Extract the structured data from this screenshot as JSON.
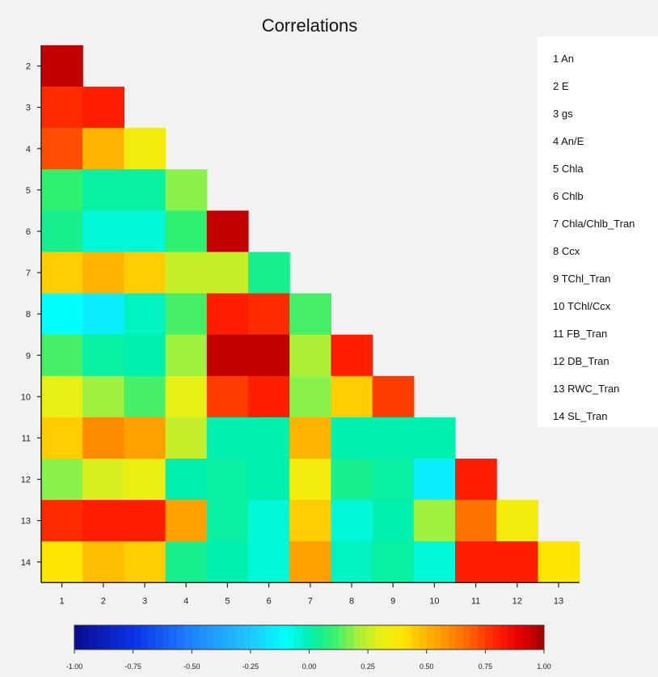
{
  "chart_data": {
    "type": "heatmap",
    "title": "Correlations",
    "x_tick_labels": [
      "1",
      "2",
      "3",
      "4",
      "5",
      "6",
      "7",
      "8",
      "9",
      "10",
      "11",
      "12",
      "13"
    ],
    "y_tick_labels": [
      "2",
      "3",
      "4",
      "5",
      "6",
      "7",
      "8",
      "9",
      "10",
      "11",
      "12",
      "13",
      "14"
    ],
    "matrix": [
      [
        0.95
      ],
      [
        0.78,
        0.8
      ],
      [
        0.72,
        0.5,
        0.35
      ],
      [
        0.1,
        0.02,
        0.02,
        0.18
      ],
      [
        0.05,
        -0.05,
        -0.05,
        0.1,
        0.95
      ],
      [
        0.45,
        0.5,
        0.45,
        0.25,
        0.25,
        0.05
      ],
      [
        -0.1,
        -0.15,
        -0.02,
        0.12,
        0.8,
        0.78,
        0.12
      ],
      [
        0.12,
        0.02,
        0.0,
        0.2,
        0.95,
        0.95,
        0.22,
        0.8
      ],
      [
        0.3,
        0.2,
        0.12,
        0.3,
        0.75,
        0.8,
        0.18,
        0.45,
        0.75
      ],
      [
        0.45,
        0.6,
        0.55,
        0.25,
        0.0,
        0.0,
        0.5,
        0.0,
        0.0,
        0.0
      ],
      [
        0.18,
        0.28,
        0.32,
        0.0,
        0.02,
        0.0,
        0.35,
        0.05,
        0.02,
        -0.15,
        0.8
      ],
      [
        0.78,
        0.8,
        0.8,
        0.55,
        0.02,
        -0.05,
        0.45,
        -0.05,
        0.0,
        0.2,
        0.65,
        0.35
      ],
      [
        0.4,
        0.48,
        0.45,
        0.05,
        0.0,
        -0.05,
        0.55,
        -0.02,
        0.02,
        -0.05,
        0.8,
        0.8,
        0.4
      ]
    ],
    "colorbar": {
      "min": -1.0,
      "max": 1.0,
      "tick_labels": [
        "-1.00",
        "-0.75",
        "-0.50",
        "-0.25",
        "0.00",
        "0.25",
        "0.50",
        "0.75",
        "1.00"
      ],
      "steps": 64
    },
    "colorscale": [
      [
        -1.0,
        "#0a0a8c"
      ],
      [
        -0.75,
        "#0a32e6"
      ],
      [
        -0.5,
        "#1e82ff"
      ],
      [
        -0.25,
        "#1ec8ff"
      ],
      [
        -0.1,
        "#00ffff"
      ],
      [
        0.0,
        "#00f0b0"
      ],
      [
        0.1,
        "#30f070"
      ],
      [
        0.2,
        "#a0f040"
      ],
      [
        0.3,
        "#e6f014"
      ],
      [
        0.4,
        "#ffe600"
      ],
      [
        0.5,
        "#ffb400"
      ],
      [
        0.6,
        "#ff8c00"
      ],
      [
        0.7,
        "#ff5a00"
      ],
      [
        0.8,
        "#ff1e00"
      ],
      [
        0.9,
        "#e60000"
      ],
      [
        1.0,
        "#a00000"
      ]
    ],
    "legend_items": [
      "1 An",
      "2 E",
      "3 gs",
      "4 An/E",
      "5 Chla",
      "6 Chlb",
      "7 Chla/Chlb_Tran",
      "8 Ccx",
      "9 TChl_Tran",
      "10 TChl/Ccx",
      "11 FB_Tran",
      "12 DB_Tran",
      "13 RWC_Tran",
      "14 SL_Tran"
    ],
    "grid": false
  }
}
